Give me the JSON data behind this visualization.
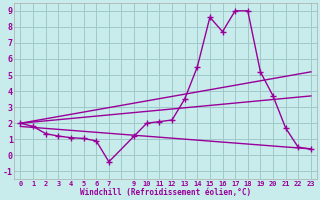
{
  "xlabel": "Windchill (Refroidissement éolien,°C)",
  "background_color": "#c8ecec",
  "grid_color": "#a0c8c8",
  "line_color": "#990099",
  "xlim": [
    -0.5,
    23.5
  ],
  "ylim": [
    -1.5,
    9.5
  ],
  "yticks": [
    -1,
    0,
    1,
    2,
    3,
    4,
    5,
    6,
    7,
    8,
    9
  ],
  "line1_x": [
    0,
    1,
    2,
    3,
    4,
    5,
    6,
    7,
    9,
    10,
    11,
    12,
    13,
    14,
    15,
    16,
    17,
    18,
    19,
    20,
    21,
    22,
    23
  ],
  "line1_y": [
    2.0,
    1.8,
    1.35,
    1.2,
    1.1,
    1.05,
    0.9,
    -0.4,
    1.2,
    2.0,
    2.1,
    2.2,
    3.5,
    5.5,
    8.6,
    7.7,
    9.0,
    9.0,
    5.2,
    3.7,
    1.7,
    0.5,
    0.4
  ],
  "line2_x": [
    0,
    23
  ],
  "line2_y": [
    2.0,
    5.2
  ],
  "line3_x": [
    0,
    23
  ],
  "line3_y": [
    2.0,
    3.7
  ],
  "line4_x": [
    0,
    23
  ],
  "line4_y": [
    1.8,
    0.4
  ]
}
